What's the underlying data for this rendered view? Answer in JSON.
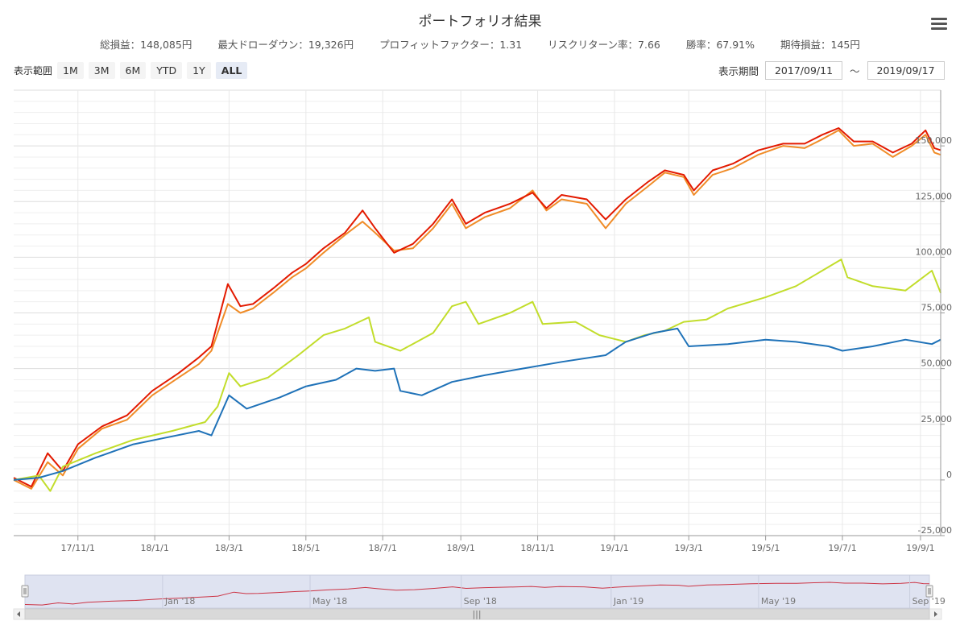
{
  "title": "ポートフォリオ結果",
  "stats": [
    "総損益：148,085円",
    "最大ドローダウン：19,326円",
    "プロフィットファクター：1.31",
    "リスクリターン率：7.66",
    "勝率：67.91%",
    "期待損益：145円"
  ],
  "range_selector": {
    "label": "表示範囲",
    "buttons": [
      "1M",
      "3M",
      "6M",
      "YTD",
      "1Y",
      "ALL"
    ],
    "selected": "ALL"
  },
  "period": {
    "label": "表示期間",
    "from": "2017/09/11",
    "to": "2019/09/17",
    "separator": "～"
  },
  "icons": {
    "menu": "hamburger-menu-icon"
  },
  "colors": {
    "red": "#e31a00",
    "orange": "#f08c28",
    "lime": "#c2dd2b",
    "blue": "#1f72b8",
    "navigator_line": "#cc3344",
    "navigator_mask": "#dfe3f1"
  },
  "chart_data": {
    "type": "line",
    "x_type": "date",
    "xlim": [
      "2017-09-11",
      "2019-09-17"
    ],
    "ylim": [
      -25000,
      175000
    ],
    "x_ticks": [
      "2017-11-01",
      "2018-01-01",
      "2018-03-01",
      "2018-05-01",
      "2018-07-01",
      "2018-09-01",
      "2018-11-01",
      "2019-01-01",
      "2019-03-01",
      "2019-05-01",
      "2019-07-01",
      "2019-09-01"
    ],
    "x_tick_labels": [
      "17/11/1",
      "18/1/1",
      "18/3/1",
      "18/5/1",
      "18/7/1",
      "18/9/1",
      "18/11/1",
      "19/1/1",
      "19/3/1",
      "19/5/1",
      "19/7/1",
      "19/9/1"
    ],
    "y_ticks": [
      -25000,
      0,
      25000,
      50000,
      75000,
      100000,
      125000,
      150000
    ],
    "y_tick_labels": [
      "-25,000",
      "0",
      "25,000",
      "50,000",
      "75,000",
      "100,000",
      "125,000",
      "150,000"
    ],
    "grid": true,
    "legend": "none",
    "series": [
      {
        "color": "#f08c28",
        "points": [
          [
            "2017-09-11",
            0
          ],
          [
            "2017-09-25",
            -4000
          ],
          [
            "2017-10-08",
            8000
          ],
          [
            "2017-10-20",
            2000
          ],
          [
            "2017-11-01",
            14000
          ],
          [
            "2017-11-20",
            23000
          ],
          [
            "2017-12-10",
            27000
          ],
          [
            "2017-12-30",
            38000
          ],
          [
            "2018-01-20",
            46000
          ],
          [
            "2018-02-05",
            52000
          ],
          [
            "2018-02-15",
            58000
          ],
          [
            "2018-02-28",
            79000
          ],
          [
            "2018-03-10",
            75000
          ],
          [
            "2018-03-20",
            77000
          ],
          [
            "2018-04-05",
            84000
          ],
          [
            "2018-04-20",
            91000
          ],
          [
            "2018-05-01",
            95000
          ],
          [
            "2018-05-15",
            102000
          ],
          [
            "2018-06-01",
            110000
          ],
          [
            "2018-06-15",
            116000
          ],
          [
            "2018-06-25",
            111000
          ],
          [
            "2018-07-10",
            103000
          ],
          [
            "2018-07-25",
            104000
          ],
          [
            "2018-08-10",
            113000
          ],
          [
            "2018-08-25",
            124000
          ],
          [
            "2018-09-05",
            113000
          ],
          [
            "2018-09-20",
            118000
          ],
          [
            "2018-10-10",
            122000
          ],
          [
            "2018-10-28",
            130000
          ],
          [
            "2018-11-08",
            121000
          ],
          [
            "2018-11-20",
            126000
          ],
          [
            "2018-12-10",
            124000
          ],
          [
            "2018-12-25",
            113000
          ],
          [
            "2019-01-10",
            124000
          ],
          [
            "2019-01-28",
            132000
          ],
          [
            "2019-02-10",
            138000
          ],
          [
            "2019-02-25",
            136000
          ],
          [
            "2019-03-05",
            128000
          ],
          [
            "2019-03-20",
            137000
          ],
          [
            "2019-04-05",
            140000
          ],
          [
            "2019-04-25",
            146000
          ],
          [
            "2019-05-15",
            150000
          ],
          [
            "2019-06-01",
            149000
          ],
          [
            "2019-06-15",
            153000
          ],
          [
            "2019-06-28",
            157000
          ],
          [
            "2019-07-10",
            150000
          ],
          [
            "2019-07-25",
            151000
          ],
          [
            "2019-08-10",
            145000
          ],
          [
            "2019-08-25",
            150000
          ],
          [
            "2019-09-05",
            155000
          ],
          [
            "2019-09-12",
            147000
          ],
          [
            "2019-09-17",
            146000
          ]
        ]
      },
      {
        "color": "#e31a00",
        "points": [
          [
            "2017-09-11",
            1000
          ],
          [
            "2017-09-25",
            -3000
          ],
          [
            "2017-10-08",
            12000
          ],
          [
            "2017-10-20",
            4000
          ],
          [
            "2017-11-01",
            16000
          ],
          [
            "2017-11-20",
            24000
          ],
          [
            "2017-12-10",
            29000
          ],
          [
            "2017-12-30",
            40000
          ],
          [
            "2018-01-20",
            48000
          ],
          [
            "2018-02-05",
            55000
          ],
          [
            "2018-02-15",
            60000
          ],
          [
            "2018-02-28",
            88000
          ],
          [
            "2018-03-10",
            78000
          ],
          [
            "2018-03-20",
            79000
          ],
          [
            "2018-04-05",
            86000
          ],
          [
            "2018-04-20",
            93000
          ],
          [
            "2018-05-01",
            97000
          ],
          [
            "2018-05-15",
            104000
          ],
          [
            "2018-06-01",
            111000
          ],
          [
            "2018-06-15",
            121000
          ],
          [
            "2018-06-25",
            113000
          ],
          [
            "2018-07-10",
            102000
          ],
          [
            "2018-07-25",
            106000
          ],
          [
            "2018-08-10",
            115000
          ],
          [
            "2018-08-25",
            126000
          ],
          [
            "2018-09-05",
            115000
          ],
          [
            "2018-09-20",
            120000
          ],
          [
            "2018-10-10",
            124000
          ],
          [
            "2018-10-28",
            129000
          ],
          [
            "2018-11-08",
            122000
          ],
          [
            "2018-11-20",
            128000
          ],
          [
            "2018-12-10",
            126000
          ],
          [
            "2018-12-25",
            117000
          ],
          [
            "2019-01-10",
            126000
          ],
          [
            "2019-01-28",
            134000
          ],
          [
            "2019-02-10",
            139000
          ],
          [
            "2019-02-25",
            137000
          ],
          [
            "2019-03-05",
            130000
          ],
          [
            "2019-03-20",
            139000
          ],
          [
            "2019-04-05",
            142000
          ],
          [
            "2019-04-25",
            148000
          ],
          [
            "2019-05-15",
            151000
          ],
          [
            "2019-06-01",
            151000
          ],
          [
            "2019-06-15",
            155000
          ],
          [
            "2019-06-28",
            158000
          ],
          [
            "2019-07-10",
            152000
          ],
          [
            "2019-07-25",
            152000
          ],
          [
            "2019-08-10",
            147000
          ],
          [
            "2019-08-25",
            151000
          ],
          [
            "2019-09-05",
            157000
          ],
          [
            "2019-09-12",
            149000
          ],
          [
            "2019-09-17",
            148085
          ]
        ]
      },
      {
        "color": "#c2dd2b",
        "points": [
          [
            "2017-09-11",
            0
          ],
          [
            "2017-10-01",
            2000
          ],
          [
            "2017-10-10",
            -5000
          ],
          [
            "2017-10-20",
            6000
          ],
          [
            "2017-11-15",
            12000
          ],
          [
            "2017-12-15",
            18000
          ],
          [
            "2018-01-15",
            22000
          ],
          [
            "2018-02-10",
            26000
          ],
          [
            "2018-02-20",
            33000
          ],
          [
            "2018-03-01",
            48000
          ],
          [
            "2018-03-10",
            42000
          ],
          [
            "2018-04-01",
            46000
          ],
          [
            "2018-04-25",
            56000
          ],
          [
            "2018-05-15",
            65000
          ],
          [
            "2018-06-01",
            68000
          ],
          [
            "2018-06-20",
            73000
          ],
          [
            "2018-06-25",
            62000
          ],
          [
            "2018-07-15",
            58000
          ],
          [
            "2018-08-10",
            66000
          ],
          [
            "2018-08-25",
            78000
          ],
          [
            "2018-09-05",
            80000
          ],
          [
            "2018-09-15",
            70000
          ],
          [
            "2018-10-10",
            75000
          ],
          [
            "2018-10-28",
            80000
          ],
          [
            "2018-11-05",
            70000
          ],
          [
            "2018-12-01",
            71000
          ],
          [
            "2018-12-20",
            65000
          ],
          [
            "2019-01-10",
            62000
          ],
          [
            "2019-01-25",
            65000
          ],
          [
            "2019-02-10",
            67000
          ],
          [
            "2019-02-25",
            71000
          ],
          [
            "2019-03-15",
            72000
          ],
          [
            "2019-04-01",
            77000
          ],
          [
            "2019-05-01",
            82000
          ],
          [
            "2019-05-25",
            87000
          ],
          [
            "2019-06-15",
            94000
          ],
          [
            "2019-06-30",
            99000
          ],
          [
            "2019-07-05",
            91000
          ],
          [
            "2019-07-25",
            87000
          ],
          [
            "2019-08-20",
            85000
          ],
          [
            "2019-09-10",
            94000
          ],
          [
            "2019-09-17",
            84000
          ]
        ]
      },
      {
        "color": "#1f72b8",
        "points": [
          [
            "2017-09-11",
            0
          ],
          [
            "2017-10-01",
            1000
          ],
          [
            "2017-10-20",
            4000
          ],
          [
            "2017-11-15",
            10000
          ],
          [
            "2017-12-15",
            16000
          ],
          [
            "2018-01-10",
            19000
          ],
          [
            "2018-02-05",
            22000
          ],
          [
            "2018-02-15",
            20000
          ],
          [
            "2018-03-01",
            38000
          ],
          [
            "2018-03-15",
            32000
          ],
          [
            "2018-04-10",
            37000
          ],
          [
            "2018-05-01",
            42000
          ],
          [
            "2018-05-25",
            45000
          ],
          [
            "2018-06-10",
            50000
          ],
          [
            "2018-06-25",
            49000
          ],
          [
            "2018-07-10",
            50000
          ],
          [
            "2018-07-15",
            40000
          ],
          [
            "2018-08-01",
            38000
          ],
          [
            "2018-08-25",
            44000
          ],
          [
            "2018-09-20",
            47000
          ],
          [
            "2018-10-20",
            50000
          ],
          [
            "2018-11-20",
            53000
          ],
          [
            "2018-12-25",
            56000
          ],
          [
            "2019-01-10",
            62000
          ],
          [
            "2019-02-01",
            66000
          ],
          [
            "2019-02-20",
            68000
          ],
          [
            "2019-03-01",
            60000
          ],
          [
            "2019-04-01",
            61000
          ],
          [
            "2019-05-01",
            63000
          ],
          [
            "2019-05-25",
            62000
          ],
          [
            "2019-06-20",
            60000
          ],
          [
            "2019-07-01",
            58000
          ],
          [
            "2019-07-25",
            60000
          ],
          [
            "2019-08-20",
            63000
          ],
          [
            "2019-09-10",
            61000
          ],
          [
            "2019-09-17",
            63000
          ]
        ]
      }
    ],
    "navigator": {
      "labels": [
        "Jan '18",
        "May '18",
        "Sep '18",
        "Jan '19",
        "May '19",
        "Sep '19"
      ],
      "label_dates": [
        "2018-01-01",
        "2018-05-01",
        "2018-09-01",
        "2019-01-01",
        "2019-05-01",
        "2019-09-01"
      ],
      "scrollbar_grip": "|||"
    }
  }
}
